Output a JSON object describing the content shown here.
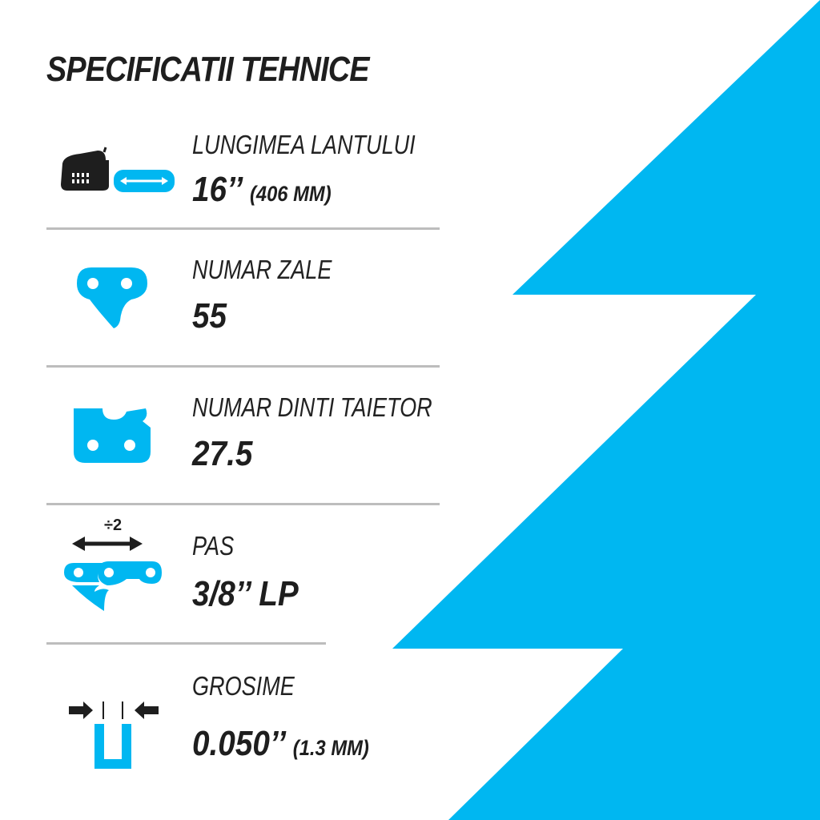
{
  "colors": {
    "accent": "#00b7f1",
    "text": "#1e1e1e",
    "divider": "#bdbdbd"
  },
  "title": "SPECIFICATII TEHNICE",
  "specs": [
    {
      "icon": "chainsaw-icon",
      "label": "LUNGIMEA LANTULUI",
      "value": "16’’",
      "sub": "(406 MM)"
    },
    {
      "icon": "chain-link-icon",
      "label": "NUMAR ZALE",
      "value": "55",
      "sub": ""
    },
    {
      "icon": "cutter-tooth-icon",
      "label": "NUMAR DINTI TAIETOR",
      "value": "27.5",
      "sub": ""
    },
    {
      "icon": "pitch-icon",
      "icon_text": "÷2",
      "label": "PAS",
      "value": "3/8’’ LP",
      "sub": ""
    },
    {
      "icon": "gauge-icon",
      "label": "GROSIME",
      "value": "0.050’’",
      "sub": "(1.3 MM)"
    }
  ]
}
